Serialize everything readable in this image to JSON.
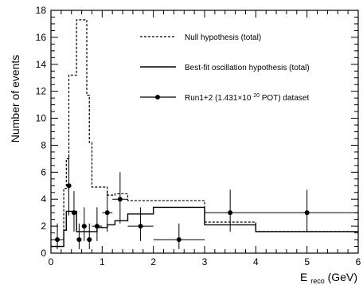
{
  "chart_data": {
    "type": "line",
    "xlabel_main": "E",
    "xlabel_sub": "reco",
    "xlabel_unit": " (GeV)",
    "ylabel": "Number of events",
    "xlim": [
      0,
      6
    ],
    "ylim": [
      0,
      18
    ],
    "x_ticks": [
      0,
      1,
      2,
      3,
      4,
      5,
      6
    ],
    "y_ticks": [
      0,
      2,
      4,
      6,
      8,
      10,
      12,
      14,
      16,
      18
    ],
    "legend_position": "top-right",
    "series": [
      {
        "name": "Null hypothesis (total)",
        "style": "dashed-step",
        "edges": [
          0,
          0.25,
          0.3,
          0.35,
          0.4,
          0.5,
          0.6,
          0.7,
          0.75,
          0.8,
          0.9,
          1.0,
          1.1,
          1.2,
          1.25,
          1.5,
          2.0,
          3.0,
          4.0,
          6.0
        ],
        "values": [
          0.5,
          4.8,
          7.0,
          13.2,
          13.2,
          17.3,
          17.3,
          11.7,
          8.2,
          4.9,
          4.9,
          4.9,
          4.3,
          4.3,
          4.4,
          3.9,
          3.9,
          2.3,
          1.6
        ]
      },
      {
        "name": "Best-fit oscillation hypothesis (total)",
        "style": "solid-step",
        "edges": [
          0,
          0.25,
          0.3,
          0.4,
          0.5,
          0.6,
          0.7,
          0.8,
          0.9,
          1.0,
          1.1,
          1.25,
          1.5,
          2.0,
          3.0,
          4.0,
          6.0
        ],
        "values": [
          0.5,
          1.7,
          3.1,
          3.1,
          1.6,
          1.6,
          1.6,
          1.6,
          1.9,
          1.9,
          2.1,
          2.4,
          2.9,
          3.4,
          2.1,
          1.6
        ]
      },
      {
        "name_prefix": "Run1+2 (1.431×10",
        "name_sup": "20",
        "name_suffix": " POT) dataset",
        "style": "points",
        "points": [
          {
            "x": 0.125,
            "y": 1,
            "xerr": 0.125,
            "ylo": 0.3,
            "yhi": 2.2
          },
          {
            "x": 0.35,
            "y": 5,
            "xerr": 0.05,
            "ylo": 2.8,
            "yhi": 7.2
          },
          {
            "x": 0.45,
            "y": 3,
            "xerr": 0.05,
            "ylo": 1.6,
            "yhi": 4.6
          },
          {
            "x": 0.55,
            "y": 1,
            "xerr": 0.05,
            "ylo": 0.3,
            "yhi": 2.2
          },
          {
            "x": 0.65,
            "y": 2,
            "xerr": 0.05,
            "ylo": 0.9,
            "yhi": 3.4
          },
          {
            "x": 0.75,
            "y": 1,
            "xerr": 0.05,
            "ylo": 0.3,
            "yhi": 2.2
          },
          {
            "x": 0.9,
            "y": 2,
            "xerr": 0.1,
            "ylo": 0.9,
            "yhi": 3.4
          },
          {
            "x": 1.1,
            "y": 3,
            "xerr": 0.1,
            "ylo": 1.6,
            "yhi": 4.6
          },
          {
            "x": 1.35,
            "y": 4,
            "xerr": 0.15,
            "ylo": 2.2,
            "yhi": 6.0
          },
          {
            "x": 1.75,
            "y": 2,
            "xerr": 0.25,
            "ylo": 0.9,
            "yhi": 3.4
          },
          {
            "x": 2.5,
            "y": 1,
            "xerr": 0.5,
            "ylo": 0.3,
            "yhi": 2.2
          },
          {
            "x": 3.5,
            "y": 3,
            "xerr": 0.5,
            "ylo": 1.6,
            "yhi": 4.7
          },
          {
            "x": 5.0,
            "y": 3,
            "xerr": 1.0,
            "ylo": 1.6,
            "yhi": 4.7
          }
        ]
      }
    ]
  }
}
